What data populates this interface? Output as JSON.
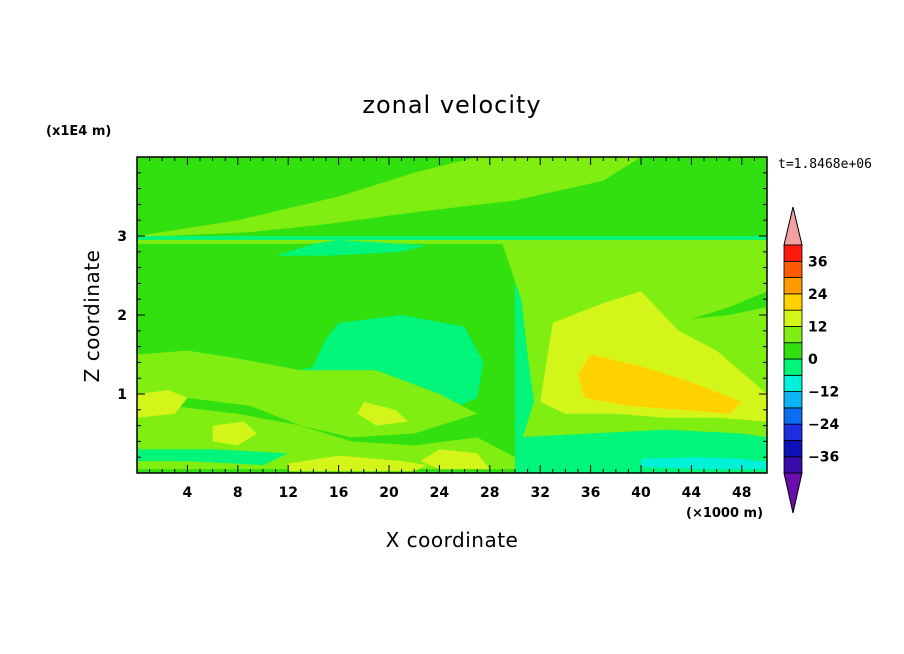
{
  "chart_data": {
    "type": "heatmap",
    "title": "zonal velocity",
    "xlabel": "X coordinate",
    "ylabel": "Z coordinate",
    "x_multiplier": "(×1000 m)",
    "y_multiplier": "(x1E4 m)",
    "time_label": "t=1.8468e+06",
    "xlim": [
      0,
      50
    ],
    "ylim": [
      0,
      4
    ],
    "x_ticks": [
      4,
      8,
      12,
      16,
      20,
      24,
      28,
      32,
      36,
      40,
      44,
      48
    ],
    "x_tick_labels": [
      "4",
      "8",
      "12",
      "16",
      "20",
      "24",
      "28",
      "32",
      "36",
      "40",
      "44",
      "48"
    ],
    "y_ticks": [
      1,
      2,
      3
    ],
    "y_tick_labels": [
      "1",
      "2",
      "3"
    ],
    "colorbar": {
      "levels": [
        -42,
        -36,
        -30,
        -24,
        -18,
        -12,
        -6,
        0,
        6,
        12,
        18,
        24,
        30,
        36,
        42
      ],
      "colors": [
        "#6a0dad",
        "#3a0aa8",
        "#1010b8",
        "#1c2ee0",
        "#0a6cf0",
        "#0ab4f5",
        "#00f0d8",
        "#00f57a",
        "#32e010",
        "#80ee10",
        "#d4f51a",
        "#ffd200",
        "#ff9a00",
        "#ff5a00",
        "#ff1a10",
        "#f4a0a0"
      ],
      "tick_values": [
        36,
        24,
        12,
        0,
        -12,
        -24,
        -36
      ],
      "tick_labels": [
        "36",
        "24",
        "12",
        "0",
        "−12",
        "−24",
        "−36"
      ]
    },
    "regions": [
      {
        "level": 0,
        "polygon": [
          [
            0,
            4
          ],
          [
            50,
            4
          ],
          [
            50,
            3
          ],
          [
            0,
            3
          ]
        ]
      },
      {
        "level": 6,
        "polygon": [
          [
            0,
            3
          ],
          [
            8,
            3.2
          ],
          [
            16,
            3.5
          ],
          [
            22,
            3.8
          ],
          [
            27,
            4
          ],
          [
            40,
            4
          ],
          [
            37,
            3.7
          ],
          [
            30,
            3.45
          ],
          [
            22,
            3.3
          ],
          [
            15,
            3.15
          ],
          [
            9,
            3.05
          ],
          [
            2,
            3.0
          ]
        ]
      },
      {
        "level": 6,
        "polygon": [
          [
            0,
            2.95
          ],
          [
            50,
            2.95
          ],
          [
            50,
            2.9
          ],
          [
            0,
            2.9
          ]
        ]
      },
      {
        "level": 0,
        "polygon": [
          [
            0,
            2.9
          ],
          [
            30,
            2.9
          ],
          [
            30,
            0
          ],
          [
            0,
            0
          ]
        ]
      },
      {
        "level": -6,
        "polygon": [
          [
            16,
            2.95
          ],
          [
            23,
            2.88
          ],
          [
            21,
            2.8
          ],
          [
            15,
            2.75
          ],
          [
            11,
            2.75
          ],
          [
            14,
            2.9
          ]
        ]
      },
      {
        "level": -6,
        "polygon": [
          [
            16,
            1.9
          ],
          [
            21,
            2.0
          ],
          [
            26,
            1.85
          ],
          [
            27.5,
            1.4
          ],
          [
            27,
            0.95
          ],
          [
            24,
            0.75
          ],
          [
            18,
            0.8
          ],
          [
            13,
            1.0
          ],
          [
            10,
            1.15
          ],
          [
            14,
            1.35
          ],
          [
            15,
            1.7
          ]
        ]
      },
      {
        "level": 6,
        "polygon": [
          [
            29,
            2.9
          ],
          [
            50,
            2.9
          ],
          [
            50,
            0
          ],
          [
            30,
            0
          ],
          [
            30.5,
            0.4
          ],
          [
            31.5,
            0.9
          ],
          [
            31,
            1.5
          ],
          [
            30.5,
            2.2
          ]
        ]
      },
      {
        "level": 12,
        "polygon": [
          [
            33,
            1.9
          ],
          [
            37,
            2.15
          ],
          [
            40,
            2.3
          ],
          [
            43,
            1.8
          ],
          [
            46,
            1.55
          ],
          [
            50,
            1.0
          ],
          [
            50,
            0.65
          ],
          [
            46,
            0.7
          ],
          [
            42,
            0.7
          ],
          [
            38,
            0.75
          ],
          [
            34,
            0.75
          ],
          [
            32,
            0.9
          ],
          [
            32.5,
            1.4
          ]
        ]
      },
      {
        "level": 18,
        "polygon": [
          [
            36,
            1.5
          ],
          [
            40,
            1.35
          ],
          [
            44,
            1.15
          ],
          [
            48,
            0.9
          ],
          [
            47,
            0.75
          ],
          [
            43,
            0.8
          ],
          [
            39,
            0.85
          ],
          [
            35.5,
            0.95
          ],
          [
            35,
            1.25
          ]
        ]
      },
      {
        "level": 0,
        "polygon": [
          [
            50,
            2.3
          ],
          [
            47,
            2.1
          ],
          [
            44,
            1.95
          ],
          [
            47,
            2.0
          ],
          [
            50,
            2.1
          ]
        ]
      },
      {
        "level": 6,
        "polygon": [
          [
            0,
            1.5
          ],
          [
            4,
            1.55
          ],
          [
            8,
            1.45
          ],
          [
            13,
            1.3
          ],
          [
            19,
            1.3
          ],
          [
            24,
            1.0
          ],
          [
            27,
            0.75
          ],
          [
            22,
            0.5
          ],
          [
            17,
            0.45
          ],
          [
            13,
            0.6
          ],
          [
            9,
            0.85
          ],
          [
            4,
            0.95
          ],
          [
            0,
            0.95
          ]
        ]
      },
      {
        "level": 6,
        "polygon": [
          [
            0,
            0.9
          ],
          [
            8,
            0.75
          ],
          [
            13,
            0.6
          ],
          [
            17,
            0.4
          ],
          [
            22,
            0.35
          ],
          [
            27,
            0.45
          ],
          [
            30,
            0.2
          ],
          [
            30,
            0.05
          ],
          [
            0,
            0.05
          ]
        ]
      },
      {
        "level": 12,
        "polygon": [
          [
            0,
            1.0
          ],
          [
            2.5,
            1.05
          ],
          [
            4,
            0.95
          ],
          [
            3,
            0.75
          ],
          [
            0,
            0.7
          ]
        ]
      },
      {
        "level": 12,
        "polygon": [
          [
            6,
            0.6
          ],
          [
            8.5,
            0.65
          ],
          [
            9.5,
            0.5
          ],
          [
            8,
            0.35
          ],
          [
            6,
            0.4
          ]
        ]
      },
      {
        "level": 12,
        "polygon": [
          [
            18,
            0.9
          ],
          [
            20.5,
            0.8
          ],
          [
            21.5,
            0.65
          ],
          [
            19,
            0.6
          ],
          [
            17.5,
            0.75
          ]
        ]
      },
      {
        "level": 12,
        "polygon": [
          [
            24,
            0.3
          ],
          [
            27,
            0.25
          ],
          [
            28,
            0.05
          ],
          [
            24,
            0.05
          ],
          [
            22.5,
            0.15
          ]
        ]
      },
      {
        "level": -6,
        "polygon": [
          [
            0,
            0.3
          ],
          [
            6,
            0.3
          ],
          [
            12,
            0.25
          ],
          [
            10,
            0.1
          ],
          [
            4,
            0.15
          ],
          [
            0,
            0.15
          ]
        ]
      },
      {
        "level": 12,
        "polygon": [
          [
            12,
            0.12
          ],
          [
            16,
            0.22
          ],
          [
            21,
            0.15
          ],
          [
            23,
            0.1
          ],
          [
            22,
            0.02
          ],
          [
            12,
            0.02
          ]
        ]
      },
      {
        "level": -6,
        "polygon": [
          [
            30,
            0.45
          ],
          [
            36,
            0.5
          ],
          [
            42,
            0.55
          ],
          [
            48,
            0.5
          ],
          [
            50,
            0.45
          ],
          [
            50,
            0
          ],
          [
            30,
            0
          ]
        ]
      },
      {
        "level": -12,
        "polygon": [
          [
            40,
            0.18
          ],
          [
            44,
            0.2
          ],
          [
            48,
            0.18
          ],
          [
            50,
            0.14
          ],
          [
            50,
            0.05
          ],
          [
            45,
            0.05
          ],
          [
            40,
            0.08
          ]
        ]
      }
    ]
  }
}
